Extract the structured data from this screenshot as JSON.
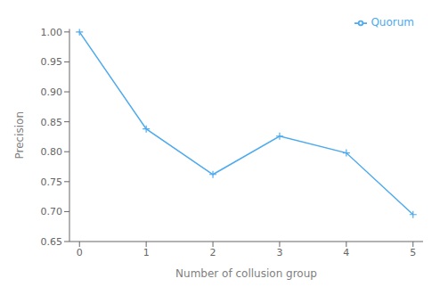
{
  "chart_data": {
    "type": "line",
    "x": [
      0,
      1,
      2,
      3,
      4,
      5
    ],
    "series": [
      {
        "name": "Quorum",
        "color": "#4DAAEE",
        "marker": "+",
        "values": [
          1.0,
          0.838,
          0.762,
          0.826,
          0.798,
          0.695
        ]
      }
    ],
    "xlabel": "Number of collusion group",
    "ylabel": "Precision",
    "xlim": [
      -0.15,
      5.15
    ],
    "ylim": [
      0.65,
      1.005
    ],
    "xticks": [
      0,
      1,
      2,
      3,
      4,
      5
    ],
    "yticks": [
      0.65,
      {
        "value": 0.7,
        "label": "0.70"
      },
      0.75,
      {
        "value": 0.8,
        "label": "0.80"
      },
      0.85,
      {
        "value": 0.9,
        "label": "0.90"
      },
      0.95,
      {
        "value": 1.0,
        "label": "1.00"
      }
    ],
    "legend": "upper right",
    "grid": false
  }
}
